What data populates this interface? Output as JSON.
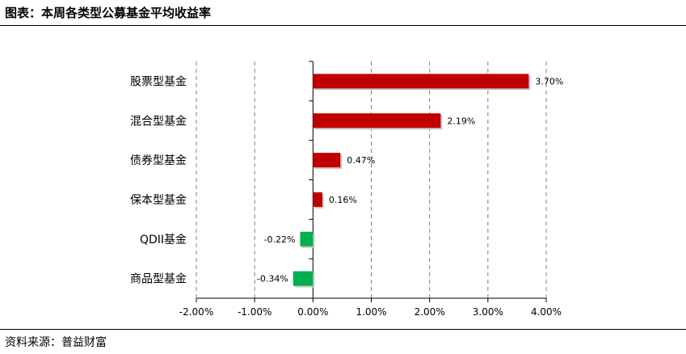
{
  "header": {
    "title": "图表：本周各类型公募基金平均收益率"
  },
  "footer": {
    "source": "资料来源：普益财富"
  },
  "colors": {
    "positive": "#c00000",
    "negative": "#00b050",
    "grid": "#808080",
    "axis": "#000000"
  },
  "chart_data": {
    "type": "bar",
    "orientation": "horizontal",
    "title": "",
    "xlabel": "",
    "ylabel": "",
    "categories": [
      "股票型基金",
      "混合型基金",
      "债券型基金",
      "保本型基金",
      "QDII基金",
      "商品型基金"
    ],
    "values": [
      3.7,
      2.19,
      0.47,
      0.16,
      -0.22,
      -0.34
    ],
    "value_labels": [
      "3.70%",
      "2.19%",
      "0.47%",
      "0.16%",
      "-0.22%",
      "-0.34%"
    ],
    "xlim": [
      -2.0,
      4.0
    ],
    "x_ticks": [
      -2.0,
      -1.0,
      0.0,
      1.0,
      2.0,
      3.0,
      4.0
    ],
    "x_tick_labels": [
      "-2.00%",
      "-1.00%",
      "0.00%",
      "1.00%",
      "2.00%",
      "3.00%",
      "4.00%"
    ],
    "grid": "vertical dashed",
    "legend": "none"
  }
}
